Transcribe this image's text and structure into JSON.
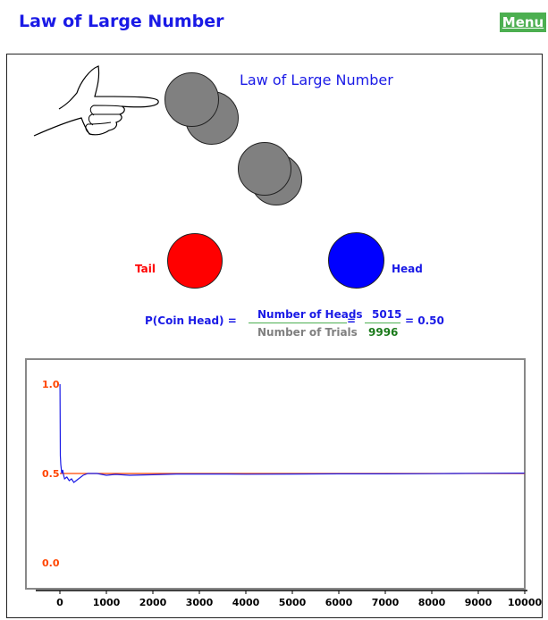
{
  "header": {
    "title": "Law of Large Number",
    "menu_label": "Menu"
  },
  "simulation": {
    "title": "Law of Large Number",
    "tail_label": "Tail",
    "head_label": "Head",
    "tail_color": "#ff0000",
    "head_color": "#0000ff",
    "coin_color": "#808080"
  },
  "formula": {
    "lhs": "P(Coin Head) =",
    "numerator_label": "Number of Heads",
    "denominator_label": "Number of Trials",
    "equals": "=",
    "heads": "5015",
    "trials": "9996",
    "result": "= 0.50"
  },
  "chart_data": {
    "type": "line",
    "xlim": [
      0,
      10000
    ],
    "ylim": [
      0,
      1
    ],
    "x_ticks": [
      "0",
      "1000",
      "2000",
      "3000",
      "4000",
      "5000",
      "6000",
      "7000",
      "8000",
      "9000",
      "10000"
    ],
    "x_tick_values": [
      0,
      1000,
      2000,
      3000,
      4000,
      5000,
      6000,
      7000,
      8000,
      9000,
      10000
    ],
    "y_ticks": [
      "0.0",
      "0.5",
      "1.0"
    ],
    "y_tick_values": [
      0,
      0.5,
      1.0
    ],
    "reference_line": 0.5,
    "reference_color": "#ff4500",
    "series": [
      {
        "color": "#1a1ae6",
        "x": [
          1,
          10,
          20,
          40,
          60,
          80,
          100,
          150,
          200,
          250,
          300,
          350,
          400,
          450,
          500,
          600,
          700,
          800,
          1000,
          1200,
          1500,
          2000,
          2500,
          3000,
          3500,
          4000,
          5000,
          6000,
          7000,
          8000,
          9000,
          9996
        ],
        "y": [
          1.0,
          0.6,
          0.55,
          0.5,
          0.52,
          0.49,
          0.47,
          0.48,
          0.46,
          0.47,
          0.45,
          0.46,
          0.47,
          0.48,
          0.49,
          0.5,
          0.5,
          0.5,
          0.49,
          0.495,
          0.49,
          0.493,
          0.497,
          0.497,
          0.497,
          0.496,
          0.497,
          0.498,
          0.498,
          0.499,
          0.501,
          0.502
        ]
      }
    ]
  }
}
